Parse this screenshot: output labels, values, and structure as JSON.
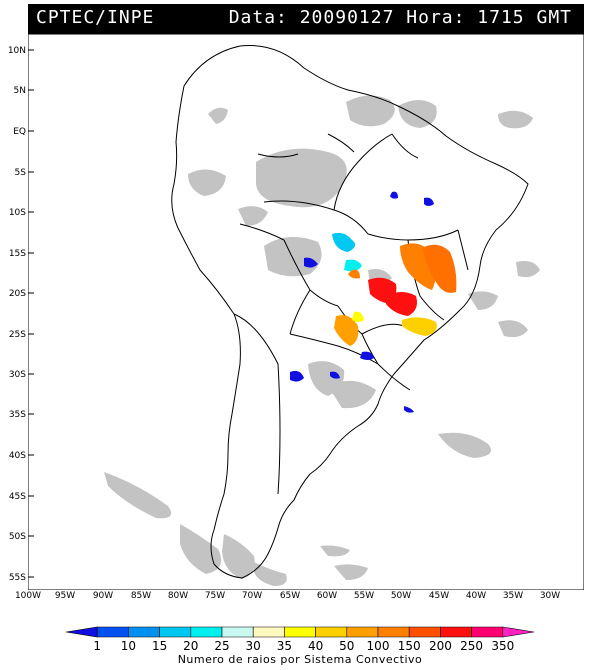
{
  "header": {
    "source": "CPTEC/INPE",
    "date_label": "Data:",
    "date": "20090127",
    "time_label": "Hora:",
    "time": "1715 GMT"
  },
  "map": {
    "lat_labels": [
      "10N",
      "5N",
      "EQ",
      "5S",
      "10S",
      "15S",
      "20S",
      "25S",
      "30S",
      "35S",
      "40S",
      "45S",
      "50S",
      "55S"
    ],
    "lon_labels": [
      "100W",
      "95W",
      "90W",
      "85W",
      "80W",
      "75W",
      "70W",
      "65W",
      "60W",
      "55W",
      "50W",
      "45W",
      "40W",
      "35W",
      "30W"
    ],
    "cloud_color": "#b8b8b8",
    "border_color": "#000000"
  },
  "legend": {
    "title": "Numero de raios por Sistema Convectivo",
    "values": [
      "1",
      "10",
      "15",
      "20",
      "25",
      "30",
      "35",
      "40",
      "50",
      "100",
      "150",
      "200",
      "250",
      "350"
    ],
    "colors": [
      "#1010e0",
      "#0050f0",
      "#0090f0",
      "#00c8f0",
      "#00f0f0",
      "#c8f8f0",
      "#fff8c0",
      "#ffff00",
      "#ffd000",
      "#ffa000",
      "#ff8000",
      "#ff5000",
      "#ff1010",
      "#ff0070",
      "#ff20c0"
    ]
  }
}
